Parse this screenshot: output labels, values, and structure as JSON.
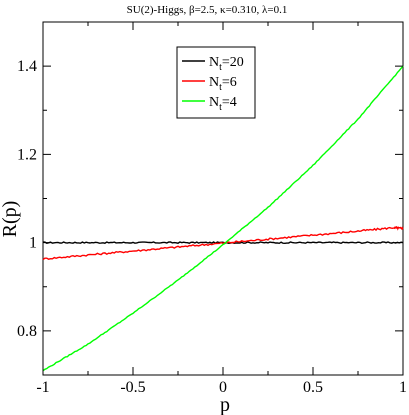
{
  "chart_data": {
    "type": "line",
    "title": "SU(2)-Higgs,  β=2.5, κ=0.310, λ=0.1",
    "xlabel": "p",
    "ylabel": "R(p)",
    "xlim": [
      -1,
      1
    ],
    "ylim": [
      0.7,
      1.5
    ],
    "xticks": [
      -1,
      -0.5,
      0,
      0.5,
      1
    ],
    "xtick_labels": [
      "-1",
      "-0.5",
      "0",
      "0.5",
      "1"
    ],
    "yticks": [
      0.8,
      1.0,
      1.2,
      1.4
    ],
    "ytick_labels": [
      "0.8",
      "1",
      "1.2",
      "1.4"
    ],
    "grid": false,
    "legend_position": "top-center",
    "series": [
      {
        "name_main": "N",
        "name_sub": "t",
        "name_suffix": "=20",
        "color": "#000000",
        "x": [
          -1,
          -0.75,
          -0.5,
          -0.25,
          0,
          0.25,
          0.5,
          0.75,
          1
        ],
        "y": [
          1.0,
          1.0,
          1.0,
          1.0,
          1.0,
          1.0,
          1.0,
          1.0,
          1.0
        ]
      },
      {
        "name_main": "N",
        "name_sub": "t",
        "name_suffix": "=6",
        "color": "#ff0000",
        "x": [
          -1,
          -0.75,
          -0.5,
          -0.25,
          0,
          0.25,
          0.5,
          0.75,
          0.95,
          1
        ],
        "y": [
          0.963,
          0.972,
          0.981,
          0.99,
          0.999,
          1.008,
          1.017,
          1.026,
          1.034,
          1.032
        ]
      },
      {
        "name_main": "N",
        "name_sub": "t",
        "name_suffix": "=4",
        "color": "#00ff00",
        "x": [
          -1,
          -0.75,
          -0.5,
          -0.25,
          0,
          0.25,
          0.5,
          0.75,
          1
        ],
        "y": [
          0.71,
          0.77,
          0.84,
          0.915,
          0.995,
          1.08,
          1.175,
          1.28,
          1.4
        ]
      }
    ]
  }
}
